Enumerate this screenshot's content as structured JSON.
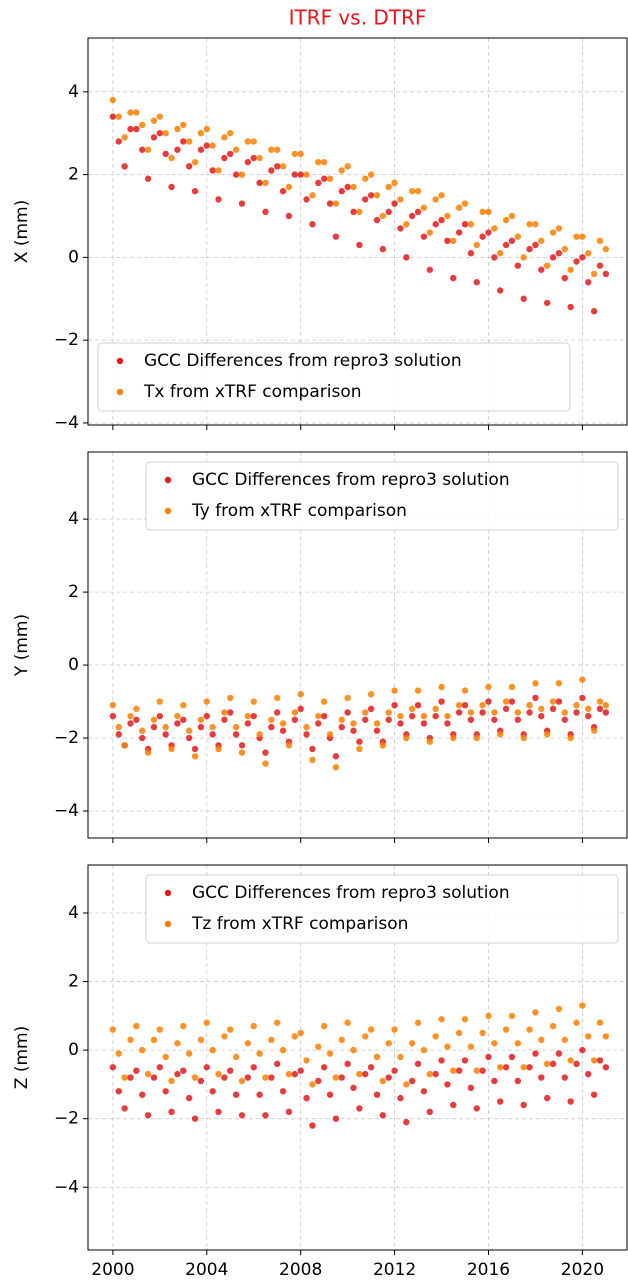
{
  "chart_data": [
    {
      "type": "scatter",
      "title": "ITRF vs. DTRF",
      "title_color": "#e8141c",
      "ylabel": "X (mm)",
      "xlim": [
        1998.94,
        2021.9
      ],
      "xticks": [
        2000,
        2004,
        2008,
        2012,
        2016,
        2020
      ],
      "ylim": [
        -4.05,
        5.3
      ],
      "yticks": [
        {
          "value": -4,
          "label": "−4"
        },
        {
          "value": -2,
          "label": "−2"
        },
        0,
        2,
        4
      ],
      "grid": true,
      "legend": "lower left",
      "x": [
        2000,
        2000.25,
        2000.5,
        2000.75,
        2001,
        2001.25,
        2001.5,
        2001.75,
        2002,
        2002.25,
        2002.5,
        2002.75,
        2003,
        2003.25,
        2003.5,
        2003.75,
        2004,
        2004.25,
        2004.5,
        2004.75,
        2005,
        2005.25,
        2005.5,
        2005.75,
        2006,
        2006.25,
        2006.5,
        2006.75,
        2007,
        2007.25,
        2007.5,
        2007.75,
        2008,
        2008.25,
        2008.5,
        2008.75,
        2009,
        2009.25,
        2009.5,
        2009.75,
        2010,
        2010.25,
        2010.5,
        2010.75,
        2011,
        2011.25,
        2011.5,
        2011.75,
        2012,
        2012.25,
        2012.5,
        2012.75,
        2013,
        2013.25,
        2013.5,
        2013.75,
        2014,
        2014.25,
        2014.5,
        2014.75,
        2015,
        2015.25,
        2015.5,
        2015.75,
        2016,
        2016.25,
        2016.5,
        2016.75,
        2017,
        2017.25,
        2017.5,
        2017.75,
        2018,
        2018.25,
        2018.5,
        2018.75,
        2019,
        2019.25,
        2019.5,
        2019.75,
        2020,
        2020.25,
        2020.5,
        2020.75,
        2021
      ],
      "series": [
        {
          "name": "GCC Differences from repro3 solution",
          "color": "#e31a1c",
          "values": [
            3.4,
            2.8,
            2.2,
            3.1,
            3.1,
            2.6,
            1.9,
            2.9,
            3.0,
            2.5,
            1.7,
            2.6,
            2.8,
            2.2,
            1.6,
            2.6,
            2.7,
            2.1,
            1.4,
            2.4,
            2.5,
            2.0,
            1.3,
            2.3,
            2.4,
            1.8,
            1.1,
            2.1,
            2.2,
            1.6,
            1.0,
            2.0,
            2.0,
            1.4,
            0.8,
            1.8,
            1.9,
            1.3,
            0.5,
            1.6,
            1.7,
            1.1,
            0.3,
            1.4,
            1.5,
            0.9,
            0.2,
            1.1,
            1.3,
            0.7,
            0.0,
            1.0,
            1.1,
            0.5,
            -0.3,
            0.8,
            0.9,
            0.4,
            -0.5,
            0.6,
            0.8,
            0.1,
            -0.6,
            0.5,
            0.6,
            0.0,
            -0.8,
            0.3,
            0.4,
            -0.2,
            -1.0,
            0.2,
            0.3,
            -0.3,
            -1.1,
            0.0,
            0.1,
            -0.5,
            -1.2,
            -0.1,
            0.0,
            -0.6,
            -1.3,
            -0.2,
            -0.4
          ]
        },
        {
          "name": "Tx from xTRF comparison",
          "color": "#ff7f00",
          "values": [
            3.8,
            3.4,
            2.9,
            3.5,
            3.5,
            3.2,
            2.6,
            3.3,
            3.4,
            3.0,
            2.4,
            3.1,
            3.2,
            2.8,
            2.3,
            3.0,
            3.1,
            2.7,
            2.1,
            2.9,
            3.0,
            2.6,
            2.0,
            2.8,
            2.8,
            2.4,
            1.8,
            2.6,
            2.6,
            2.2,
            1.7,
            2.5,
            2.5,
            2.0,
            1.5,
            2.3,
            2.3,
            1.9,
            1.3,
            2.1,
            2.2,
            1.7,
            1.1,
            1.9,
            2.0,
            1.5,
            1.0,
            1.7,
            1.8,
            1.4,
            0.8,
            1.6,
            1.6,
            1.2,
            0.6,
            1.4,
            1.5,
            1.0,
            0.4,
            1.2,
            1.3,
            0.8,
            0.3,
            1.1,
            1.1,
            0.7,
            0.1,
            0.9,
            1.0,
            0.5,
            0.0,
            0.8,
            0.8,
            0.4,
            -0.2,
            0.6,
            0.7,
            0.2,
            -0.3,
            0.5,
            0.5,
            0.1,
            -0.4,
            0.4,
            0.2
          ]
        }
      ]
    },
    {
      "type": "scatter",
      "ylabel": "Y (mm)",
      "xlim": [
        1998.94,
        2021.9
      ],
      "xticks": [
        2000,
        2004,
        2008,
        2012,
        2016,
        2020
      ],
      "ylim": [
        -4.74,
        5.84
      ],
      "yticks": [
        {
          "value": -4,
          "label": "−4"
        },
        {
          "value": -2,
          "label": "−2"
        },
        0,
        2,
        4
      ],
      "grid": true,
      "legend": "upper right",
      "x": [
        2000,
        2000.25,
        2000.5,
        2000.75,
        2001,
        2001.25,
        2001.5,
        2001.75,
        2002,
        2002.25,
        2002.5,
        2002.75,
        2003,
        2003.25,
        2003.5,
        2003.75,
        2004,
        2004.25,
        2004.5,
        2004.75,
        2005,
        2005.25,
        2005.5,
        2005.75,
        2006,
        2006.25,
        2006.5,
        2006.75,
        2007,
        2007.25,
        2007.5,
        2007.75,
        2008,
        2008.25,
        2008.5,
        2008.75,
        2009,
        2009.25,
        2009.5,
        2009.75,
        2010,
        2010.25,
        2010.5,
        2010.75,
        2011,
        2011.25,
        2011.5,
        2011.75,
        2012,
        2012.25,
        2012.5,
        2012.75,
        2013,
        2013.25,
        2013.5,
        2013.75,
        2014,
        2014.25,
        2014.5,
        2014.75,
        2015,
        2015.25,
        2015.5,
        2015.75,
        2016,
        2016.25,
        2016.5,
        2016.75,
        2017,
        2017.25,
        2017.5,
        2017.75,
        2018,
        2018.25,
        2018.5,
        2018.75,
        2019,
        2019.25,
        2019.5,
        2019.75,
        2020,
        2020.25,
        2020.5,
        2020.75,
        2021
      ],
      "series": [
        {
          "name": "GCC Differences from repro3 solution",
          "color": "#e31a1c",
          "values": [
            -1.4,
            -1.9,
            -2.2,
            -1.6,
            -1.5,
            -2.0,
            -2.3,
            -1.7,
            -1.4,
            -1.9,
            -2.2,
            -1.6,
            -1.5,
            -2.0,
            -2.3,
            -1.7,
            -1.4,
            -1.9,
            -2.2,
            -1.5,
            -1.3,
            -1.9,
            -2.2,
            -1.6,
            -1.4,
            -2.0,
            -2.4,
            -1.7,
            -1.3,
            -1.8,
            -2.1,
            -1.5,
            -1.2,
            -1.9,
            -2.3,
            -1.6,
            -1.4,
            -2.0,
            -2.5,
            -1.7,
            -1.3,
            -1.8,
            -2.1,
            -1.5,
            -1.2,
            -1.8,
            -2.1,
            -1.5,
            -1.1,
            -1.6,
            -1.9,
            -1.4,
            -1.1,
            -1.6,
            -2.0,
            -1.4,
            -1.0,
            -1.6,
            -1.9,
            -1.3,
            -1.1,
            -1.5,
            -1.9,
            -1.3,
            -1.0,
            -1.5,
            -1.8,
            -1.2,
            -1.0,
            -1.5,
            -1.9,
            -1.3,
            -0.9,
            -1.4,
            -1.8,
            -1.2,
            -1.0,
            -1.5,
            -1.9,
            -1.3,
            -0.9,
            -1.4,
            -1.7,
            -1.2,
            -1.3
          ]
        },
        {
          "name": "Ty from xTRF comparison",
          "color": "#ff7f00",
          "values": [
            -1.1,
            -1.7,
            -2.2,
            -1.4,
            -1.2,
            -1.8,
            -2.4,
            -1.5,
            -1.0,
            -1.7,
            -2.3,
            -1.4,
            -1.1,
            -1.8,
            -2.5,
            -1.5,
            -1.0,
            -1.7,
            -2.3,
            -1.3,
            -0.9,
            -1.7,
            -2.4,
            -1.4,
            -1.0,
            -1.9,
            -2.7,
            -1.5,
            -0.9,
            -1.6,
            -2.2,
            -1.3,
            -0.8,
            -1.7,
            -2.6,
            -1.4,
            -1.0,
            -1.9,
            -2.8,
            -1.5,
            -0.9,
            -1.6,
            -2.3,
            -1.3,
            -0.8,
            -1.6,
            -2.2,
            -1.3,
            -0.7,
            -1.4,
            -2.0,
            -1.2,
            -0.7,
            -1.4,
            -2.1,
            -1.2,
            -0.6,
            -1.4,
            -2.0,
            -1.1,
            -0.7,
            -1.3,
            -2.0,
            -1.1,
            -0.6,
            -1.3,
            -1.9,
            -1.0,
            -0.6,
            -1.3,
            -2.0,
            -1.1,
            -0.5,
            -1.2,
            -1.9,
            -1.0,
            -0.5,
            -1.3,
            -2.0,
            -1.1,
            -0.4,
            -1.2,
            -1.8,
            -1.0,
            -1.1
          ]
        }
      ]
    },
    {
      "type": "scatter",
      "ylabel": "Z (mm)",
      "xlim": [
        1998.94,
        2021.9
      ],
      "xticks": [
        2000,
        2004,
        2008,
        2012,
        2016,
        2020
      ],
      "ylim": [
        -5.83,
        5.4
      ],
      "yticks": [
        {
          "value": -4,
          "label": "−4"
        },
        {
          "value": -2,
          "label": "−2"
        },
        0,
        2,
        4
      ],
      "grid": true,
      "legend": "upper right",
      "x": [
        2000,
        2000.25,
        2000.5,
        2000.75,
        2001,
        2001.25,
        2001.5,
        2001.75,
        2002,
        2002.25,
        2002.5,
        2002.75,
        2003,
        2003.25,
        2003.5,
        2003.75,
        2004,
        2004.25,
        2004.5,
        2004.75,
        2005,
        2005.25,
        2005.5,
        2005.75,
        2006,
        2006.25,
        2006.5,
        2006.75,
        2007,
        2007.25,
        2007.5,
        2007.75,
        2008,
        2008.25,
        2008.5,
        2008.75,
        2009,
        2009.25,
        2009.5,
        2009.75,
        2010,
        2010.25,
        2010.5,
        2010.75,
        2011,
        2011.25,
        2011.5,
        2011.75,
        2012,
        2012.25,
        2012.5,
        2012.75,
        2013,
        2013.25,
        2013.5,
        2013.75,
        2014,
        2014.25,
        2014.5,
        2014.75,
        2015,
        2015.25,
        2015.5,
        2015.75,
        2016,
        2016.25,
        2016.5,
        2016.75,
        2017,
        2017.25,
        2017.5,
        2017.75,
        2018,
        2018.25,
        2018.5,
        2018.75,
        2019,
        2019.25,
        2019.5,
        2019.75,
        2020,
        2020.25,
        2020.5,
        2020.75,
        2021
      ],
      "series": [
        {
          "name": "GCC Differences from repro3 solution",
          "color": "#e31a1c",
          "values": [
            -0.5,
            -1.2,
            -1.7,
            -0.8,
            -0.6,
            -1.3,
            -1.9,
            -0.8,
            -0.5,
            -1.2,
            -1.8,
            -0.7,
            -0.6,
            -1.4,
            -2.0,
            -0.9,
            -0.5,
            -1.2,
            -1.8,
            -0.8,
            -0.6,
            -1.3,
            -1.9,
            -0.8,
            -0.5,
            -1.3,
            -1.9,
            -0.8,
            -0.4,
            -1.2,
            -1.8,
            -0.7,
            -0.6,
            -1.4,
            -2.2,
            -0.9,
            -0.5,
            -1.3,
            -2.0,
            -0.8,
            -0.4,
            -1.1,
            -1.7,
            -0.7,
            -0.5,
            -1.3,
            -1.9,
            -0.8,
            -0.6,
            -1.4,
            -2.1,
            -0.9,
            -0.4,
            -1.2,
            -1.8,
            -0.7,
            -0.3,
            -1.0,
            -1.6,
            -0.6,
            -0.3,
            -1.1,
            -1.7,
            -0.6,
            -0.2,
            -0.9,
            -1.5,
            -0.5,
            -0.2,
            -0.9,
            -1.6,
            -0.5,
            -0.1,
            -0.8,
            -1.4,
            -0.4,
            -0.1,
            -0.8,
            -1.5,
            -0.4,
            0.0,
            -0.7,
            -1.3,
            -0.3,
            -0.5
          ]
        },
        {
          "name": "Tz from xTRF comparison",
          "color": "#ff7f00",
          "values": [
            0.6,
            -0.1,
            -0.8,
            0.3,
            0.7,
            0.0,
            -0.7,
            0.3,
            0.6,
            -0.2,
            -0.9,
            0.2,
            0.7,
            -0.1,
            -0.8,
            0.3,
            0.8,
            0.0,
            -0.7,
            0.4,
            0.6,
            -0.2,
            -0.9,
            0.2,
            0.7,
            -0.1,
            -0.8,
            0.3,
            0.8,
            0.0,
            -0.7,
            0.4,
            0.5,
            -0.3,
            -1.0,
            0.1,
            0.7,
            -0.1,
            -0.8,
            0.3,
            0.8,
            0.0,
            -0.7,
            0.4,
            0.6,
            -0.2,
            -0.9,
            0.2,
            0.6,
            -0.2,
            -1.0,
            0.2,
            0.8,
            0.0,
            -0.7,
            0.4,
            0.9,
            0.1,
            -0.6,
            0.5,
            0.9,
            0.1,
            -0.6,
            0.5,
            1.0,
            0.2,
            -0.5,
            0.6,
            1.0,
            0.2,
            -0.5,
            0.6,
            1.1,
            0.3,
            -0.4,
            0.7,
            1.2,
            0.3,
            -0.3,
            0.8,
            1.3,
            0.4,
            -0.3,
            0.8,
            0.4
          ]
        }
      ]
    }
  ]
}
